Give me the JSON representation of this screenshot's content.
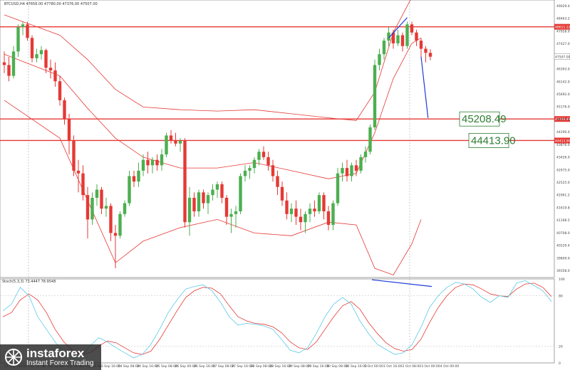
{
  "header": {
    "symbol_line": "BTCUSD,H4  47656.00 47780.00 47376.00 47507.00"
  },
  "osc": {
    "header": "Stoch(5,3,3) 73.4447 78.9548"
  },
  "levels": [
    {
      "price": 48611.22,
      "label": "48611.22",
      "big_label": ""
    },
    {
      "price": 45208.49,
      "label": "45208.49",
      "big_label": "45208.49"
    },
    {
      "price": 44413.9,
      "label": "44413.90",
      "big_label": "44413.90"
    }
  ],
  "current_price": {
    "value": 47507.0,
    "label": "47507.00"
  },
  "y_ticks": [
    "49029.40",
    "48463.20",
    "47958.00",
    "47427.00",
    "46943.00",
    "46393.00",
    "46142.00",
    "45692.00",
    "45176.00",
    "44777.00",
    "44290.00",
    "43876.00",
    "43426.00",
    "42975.00",
    "42525.00",
    "42061.25",
    "41619.80",
    "41168.55",
    "40708.00",
    "40229.45",
    "39809.00",
    "39358.00"
  ],
  "osc_ticks": [
    "100",
    "80",
    "20",
    "0"
  ],
  "x_labels": [
    "21 Sep 2021",
    "21 Sep 16:00",
    "22 Sep 08:00",
    "22 Sep 16:00",
    "23 Sep 08:00",
    "23 Sep 16:00",
    "24 Sep 08:00",
    "24 Sep 16:00",
    "25 Sep 08:00",
    "26 Sep 00:00",
    "26 Sep 16:00",
    "27 Sep 08:00",
    "27 Sep 16:00",
    "28 Sep 08:00",
    "28 Sep 16:00",
    "29 Sep 08:00",
    "29 Sep 16:00",
    "30 Sep 08:00",
    "30 Sep 16:00",
    "1 Oct 00:00",
    "1 Oct 16:00",
    "2 Oct 08:00",
    "3 Oct 00:00",
    "4 Oct 00:00"
  ],
  "brand": {
    "name": "instaforex",
    "tagline": "Instant Forex Trading"
  },
  "colors": {
    "bull": "#4caf50",
    "bear": "#e53935",
    "level": "#e53935",
    "trend": "#1e3ad6",
    "band": "#e53935",
    "osc_main": "#5ec8e6",
    "osc_signal": "#e53935",
    "label_text": "#2e7d32"
  },
  "chart_data": {
    "type": "candlestick",
    "symbol": "BTCUSD",
    "timeframe": "H4",
    "ylim": [
      39358,
      49600
    ],
    "candles": [
      [
        47300,
        47700,
        46900,
        47200
      ],
      [
        47200,
        47500,
        46600,
        46800
      ],
      [
        46800,
        47900,
        46700,
        47700
      ],
      [
        47700,
        48700,
        47500,
        48600
      ],
      [
        48600,
        48800,
        48300,
        48700
      ],
      [
        48700,
        48800,
        48100,
        48200
      ],
      [
        48200,
        48300,
        47300,
        47450
      ],
      [
        47450,
        47800,
        47300,
        47600
      ],
      [
        47600,
        47900,
        47400,
        47750
      ],
      [
        47750,
        47800,
        46900,
        47100
      ],
      [
        47100,
        47400,
        46700,
        47000
      ],
      [
        47000,
        47300,
        46400,
        46600
      ],
      [
        46600,
        46800,
        45700,
        45900
      ],
      [
        45900,
        46000,
        45000,
        45200
      ],
      [
        45200,
        45400,
        43900,
        44400
      ],
      [
        44400,
        44600,
        43100,
        43300
      ],
      [
        43300,
        43700,
        42500,
        43200
      ],
      [
        43200,
        43500,
        42200,
        42400
      ],
      [
        42400,
        42700,
        40800,
        41500
      ],
      [
        41500,
        42500,
        41300,
        42300
      ],
      [
        42300,
        42800,
        42000,
        42600
      ],
      [
        42600,
        42700,
        41700,
        41900
      ],
      [
        41900,
        42300,
        41600,
        42000
      ],
      [
        42000,
        42100,
        40700,
        41000
      ],
      [
        41000,
        41300,
        39700,
        40900
      ],
      [
        40900,
        41800,
        40800,
        41700
      ],
      [
        41700,
        42200,
        41600,
        42100
      ],
      [
        42100,
        43300,
        42000,
        43100
      ],
      [
        43100,
        43300,
        42700,
        42900
      ],
      [
        42900,
        43600,
        42700,
        43300
      ],
      [
        43300,
        43900,
        43100,
        43700
      ],
      [
        43700,
        44000,
        43200,
        43500
      ],
      [
        43500,
        43800,
        43200,
        43700
      ],
      [
        43700,
        43900,
        43300,
        43500
      ],
      [
        43500,
        44100,
        43300,
        43900
      ],
      [
        43900,
        44700,
        43800,
        44600
      ],
      [
        44600,
        44800,
        44300,
        44400
      ],
      [
        44400,
        44700,
        44200,
        44300
      ],
      [
        44300,
        44500,
        44000,
        44400
      ],
      [
        44400,
        44500,
        41200,
        41400
      ],
      [
        41400,
        42700,
        40900,
        42300
      ],
      [
        42300,
        42500,
        41600,
        41800
      ],
      [
        41800,
        42600,
        41600,
        42500
      ],
      [
        42500,
        42600,
        41900,
        42100
      ],
      [
        42100,
        42500,
        41700,
        42400
      ],
      [
        42400,
        42800,
        42200,
        42600
      ],
      [
        42600,
        42900,
        42300,
        42800
      ],
      [
        42800,
        42900,
        42100,
        42300
      ],
      [
        42300,
        42400,
        41300,
        41600
      ],
      [
        41600,
        41900,
        41000,
        41700
      ],
      [
        41700,
        42000,
        41200,
        41800
      ],
      [
        41800,
        43200,
        41700,
        43100
      ],
      [
        43100,
        43500,
        42900,
        43300
      ],
      [
        43300,
        43500,
        43000,
        43400
      ],
      [
        43400,
        43800,
        43200,
        43700
      ],
      [
        43700,
        44100,
        43500,
        44000
      ],
      [
        44000,
        44200,
        43700,
        43800
      ],
      [
        43800,
        44000,
        43300,
        43500
      ],
      [
        43500,
        43700,
        42900,
        43100
      ],
      [
        43100,
        43300,
        42400,
        42700
      ],
      [
        42700,
        42900,
        42000,
        42200
      ],
      [
        42200,
        42500,
        41500,
        41700
      ],
      [
        41700,
        42100,
        41400,
        41900
      ],
      [
        41900,
        42200,
        41300,
        41600
      ],
      [
        41600,
        41900,
        41100,
        41400
      ],
      [
        41400,
        41800,
        41000,
        41700
      ],
      [
        41700,
        42100,
        41400,
        41900
      ],
      [
        41900,
        42200,
        41600,
        41800
      ],
      [
        41800,
        42500,
        41700,
        42400
      ],
      [
        42400,
        42500,
        41500,
        41800
      ],
      [
        41800,
        42000,
        41100,
        41300
      ],
      [
        41300,
        42200,
        41100,
        42100
      ],
      [
        42100,
        43400,
        42000,
        43200
      ],
      [
        43200,
        43600,
        42900,
        43400
      ],
      [
        43400,
        43700,
        42900,
        43100
      ],
      [
        43100,
        43600,
        42900,
        43500
      ],
      [
        43500,
        43700,
        43100,
        43300
      ],
      [
        43300,
        43900,
        43200,
        43800
      ],
      [
        43800,
        44200,
        43600,
        44000
      ],
      [
        44000,
        45000,
        43900,
        44900
      ],
      [
        44900,
        47400,
        44800,
        47200
      ],
      [
        47200,
        47800,
        47000,
        47600
      ],
      [
        47600,
        48200,
        47400,
        48100
      ],
      [
        48100,
        48600,
        47900,
        48400
      ],
      [
        48400,
        48500,
        47800,
        48000
      ],
      [
        48000,
        48500,
        47900,
        48300
      ],
      [
        48300,
        48400,
        47700,
        47900
      ],
      [
        47900,
        48800,
        47800,
        48700
      ],
      [
        48700,
        48800,
        48300,
        48400
      ],
      [
        48400,
        48500,
        47900,
        48100
      ],
      [
        48100,
        48200,
        47500,
        47800
      ],
      [
        47800,
        47900,
        47300,
        47650
      ],
      [
        47650,
        47780,
        47376,
        47507
      ]
    ],
    "indicators": {
      "bollinger_upper": [
        [
          0,
          49050
        ],
        [
          12,
          48300
        ],
        [
          18,
          47400
        ],
        [
          24,
          46300
        ],
        [
          30,
          45650
        ],
        [
          38,
          45550
        ],
        [
          46,
          45500
        ],
        [
          54,
          45550
        ],
        [
          62,
          45400
        ],
        [
          70,
          45250
        ],
        [
          76,
          45150
        ],
        [
          80,
          46200
        ],
        [
          84,
          48400
        ],
        [
          88,
          49700
        ],
        [
          90,
          49900
        ]
      ],
      "bollinger_middle": [
        [
          0,
          47600
        ],
        [
          12,
          46800
        ],
        [
          18,
          45600
        ],
        [
          24,
          44500
        ],
        [
          30,
          43800
        ],
        [
          38,
          43400
        ],
        [
          46,
          43400
        ],
        [
          54,
          43600
        ],
        [
          62,
          43300
        ],
        [
          70,
          43000
        ],
        [
          76,
          43200
        ],
        [
          80,
          44700
        ],
        [
          84,
          46700
        ],
        [
          88,
          48000
        ],
        [
          90,
          48200
        ]
      ],
      "bollinger_lower": [
        [
          0,
          45900
        ],
        [
          12,
          44500
        ],
        [
          18,
          42200
        ],
        [
          24,
          39900
        ],
        [
          30,
          40700
        ],
        [
          38,
          41200
        ],
        [
          46,
          41500
        ],
        [
          54,
          41000
        ],
        [
          62,
          40900
        ],
        [
          70,
          41400
        ],
        [
          76,
          41300
        ],
        [
          80,
          39700
        ],
        [
          84,
          39450
        ],
        [
          88,
          40600
        ],
        [
          90,
          41500
        ]
      ]
    },
    "trendlines": [
      {
        "from": [
          83,
          48200
        ],
        "to": [
          87,
          48950
        ]
      },
      {
        "from": [
          90,
          47507
        ],
        "to": [
          91.5,
          45250
        ]
      }
    ],
    "oscillator": {
      "name": "Stoch(5,3,3)",
      "main_value": 73.4447,
      "signal_value": 78.9548,
      "ylim": [
        0,
        100
      ],
      "main": [
        62,
        70,
        90,
        80,
        55,
        40,
        25,
        12,
        5,
        8,
        20,
        30,
        25,
        18,
        12,
        6,
        10,
        22,
        40,
        60,
        75,
        88,
        91,
        93,
        86,
        72,
        55,
        45,
        47,
        46,
        44,
        40,
        28,
        15,
        12,
        18,
        35,
        55,
        70,
        78,
        70,
        50,
        35,
        22,
        16,
        10,
        12,
        22,
        42,
        66,
        80,
        90,
        96,
        94,
        88,
        78,
        72,
        80,
        78,
        95,
        98,
        92,
        86,
        73
      ],
      "signal": [
        55,
        60,
        75,
        82,
        75,
        60,
        40,
        25,
        15,
        10,
        12,
        20,
        26,
        24,
        18,
        12,
        10,
        14,
        28,
        45,
        62,
        78,
        86,
        90,
        89,
        82,
        68,
        55,
        50,
        47,
        46,
        43,
        36,
        25,
        18,
        16,
        25,
        40,
        55,
        68,
        73,
        64,
        48,
        35,
        24,
        17,
        14,
        16,
        28,
        48,
        66,
        80,
        90,
        94,
        93,
        88,
        82,
        80,
        79,
        88,
        94,
        95,
        90,
        79
      ]
    }
  }
}
